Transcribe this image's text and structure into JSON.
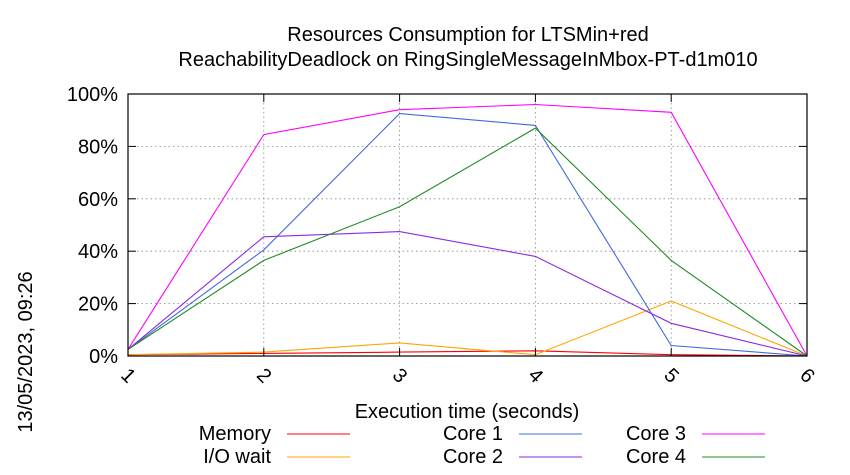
{
  "side_label": "13/05/2023, 09:26",
  "chart_data": {
    "type": "line",
    "title": [
      "Resources Consumption for LTSMin+red",
      "ReachabilityDeadlock on RingSingleMessageInMbox-PT-d1m010"
    ],
    "xlabel": "Execution time (seconds)",
    "ylabel": "",
    "x": [
      1,
      2,
      3,
      4,
      5,
      6
    ],
    "xlim": [
      1,
      6
    ],
    "ylim": [
      0,
      100
    ],
    "x_ticks": [
      "1",
      "2",
      "3",
      "4",
      "5",
      "6"
    ],
    "y_ticks": [
      "0%",
      "20%",
      "40%",
      "60%",
      "80%",
      "100%"
    ],
    "grid": true,
    "legend_position": "bottom",
    "series": [
      {
        "name": "Memory",
        "color": "#ff0000",
        "values": [
          0.5,
          1.0,
          1.5,
          2.0,
          0.5,
          0
        ]
      },
      {
        "name": "I/O wait",
        "color": "#ffa500",
        "values": [
          0.5,
          1.5,
          5.0,
          0.5,
          21.0,
          0
        ]
      },
      {
        "name": "Core 1",
        "color": "#4169e1",
        "values": [
          2.5,
          40.5,
          92.5,
          88.0,
          4.0,
          0
        ]
      },
      {
        "name": "Core 2",
        "color": "#8a2be2",
        "values": [
          2.5,
          45.5,
          47.5,
          38.0,
          12.5,
          0
        ]
      },
      {
        "name": "Core 3",
        "color": "#ff00ff",
        "values": [
          2.5,
          84.5,
          94.0,
          96.0,
          93.0,
          0
        ]
      },
      {
        "name": "Core 4",
        "color": "#228b22",
        "values": [
          2.5,
          36.5,
          57.0,
          87.0,
          36.5,
          0
        ]
      }
    ]
  }
}
